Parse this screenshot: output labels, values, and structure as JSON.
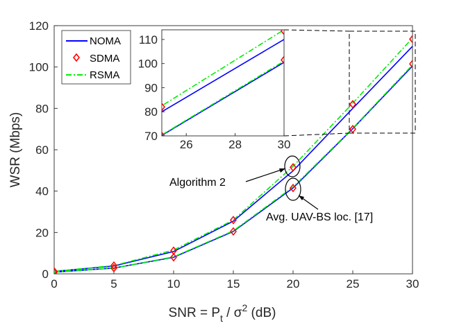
{
  "chart_data": {
    "type": "line",
    "xlabel_parts": {
      "main": "SNR = P",
      "sub": "t",
      "mid": " / σ",
      "sup": "2",
      "tail": " (dB)"
    },
    "ylabel": "WSR (Mbps)",
    "xlim": [
      0,
      30
    ],
    "ylim": [
      0,
      120
    ],
    "xticks": [
      0,
      5,
      10,
      15,
      20,
      25,
      30
    ],
    "yticks": [
      0,
      20,
      40,
      60,
      80,
      100,
      120
    ],
    "x": [
      0,
      5,
      10,
      15,
      20,
      25,
      30
    ],
    "series": [
      {
        "name": "NOMA",
        "group": "Algorithm 2",
        "color": "#0000ff",
        "style": "solid",
        "values": [
          1.2,
          3.8,
          10.8,
          25.5,
          49.8,
          80.0,
          110.0
        ]
      },
      {
        "name": "SDMA",
        "group": "Algorithm 2",
        "color": "#ff0000",
        "style": "diamond",
        "values": [
          1.2,
          4.0,
          11.2,
          26.0,
          51.5,
          82.0,
          113.5
        ]
      },
      {
        "name": "RSMA",
        "group": "Algorithm 2",
        "color": "#00ee00",
        "style": "dashdot",
        "values": [
          1.2,
          4.0,
          11.5,
          26.0,
          52.0,
          82.5,
          114.0
        ]
      },
      {
        "name": "NOMA",
        "group": "Avg. UAV-BS loc. [17]",
        "color": "#0000ff",
        "style": "solid",
        "values": [
          0.8,
          2.8,
          8.0,
          20.5,
          41.5,
          70.2,
          100.5
        ]
      },
      {
        "name": "SDMA",
        "group": "Avg. UAV-BS loc. [17]",
        "color": "#ff0000",
        "style": "diamond",
        "values": [
          0.8,
          2.8,
          8.0,
          20.5,
          41.5,
          70.0,
          101.5
        ]
      },
      {
        "name": "RSMA",
        "group": "Avg. UAV-BS loc. [17]",
        "color": "#00ee00",
        "style": "dashdot",
        "values": [
          0.8,
          2.8,
          8.2,
          20.8,
          42.0,
          70.4,
          101.0
        ]
      }
    ],
    "legend": {
      "entries": [
        "NOMA",
        "SDMA",
        "RSMA"
      ],
      "placement": "top-left"
    },
    "inset": {
      "xlim": [
        25,
        30
      ],
      "ylim": [
        70,
        114
      ],
      "xticks": [
        26,
        28,
        30
      ],
      "yticks": [
        70,
        80,
        90,
        100,
        110
      ],
      "placement": "top-center"
    },
    "annotations": [
      "Algorithm 2",
      "Avg. UAV-BS loc. [17]"
    ]
  }
}
